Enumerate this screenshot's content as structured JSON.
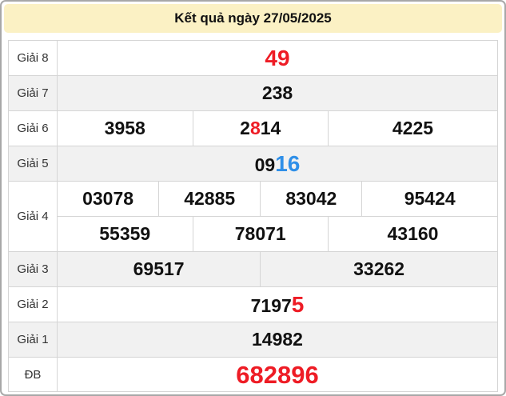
{
  "header": {
    "title": "Kết quả ngày 27/05/2025"
  },
  "colors": {
    "header_bg": "#FBF1C4",
    "row_alt_bg": "#F1F1F1",
    "cell_border": "#D5D5D5",
    "number_black": "#111111",
    "highlight_red": "#EE1C25",
    "highlight_blue": "#2F8FE8"
  },
  "prizes": {
    "g8": {
      "label": "Giải 8",
      "value": "49"
    },
    "g7": {
      "label": "Giải 7",
      "value": "238"
    },
    "g6": {
      "label": "Giải 6",
      "v1": "3958",
      "v2_pre": "2",
      "v2_red": "8",
      "v2_post": "14",
      "v3": "4225"
    },
    "g5": {
      "label": "Giải 5",
      "v_black": "09",
      "v_blue": "16"
    },
    "g4": {
      "label": "Giải 4",
      "r1c1": "03078",
      "r1c2": "42885",
      "r1c3": "83042",
      "r1c4": "95424",
      "r2c1": "55359",
      "r2c2": "78071",
      "r2c3": "43160"
    },
    "g3": {
      "label": "Giải 3",
      "v1": "69517",
      "v2": "33262"
    },
    "g2": {
      "label": "Giải 2",
      "v_black": "7197",
      "v_red": "5"
    },
    "g1": {
      "label": "Giải 1",
      "value": "14982"
    },
    "db": {
      "label": "ĐB",
      "value": "682896"
    }
  }
}
